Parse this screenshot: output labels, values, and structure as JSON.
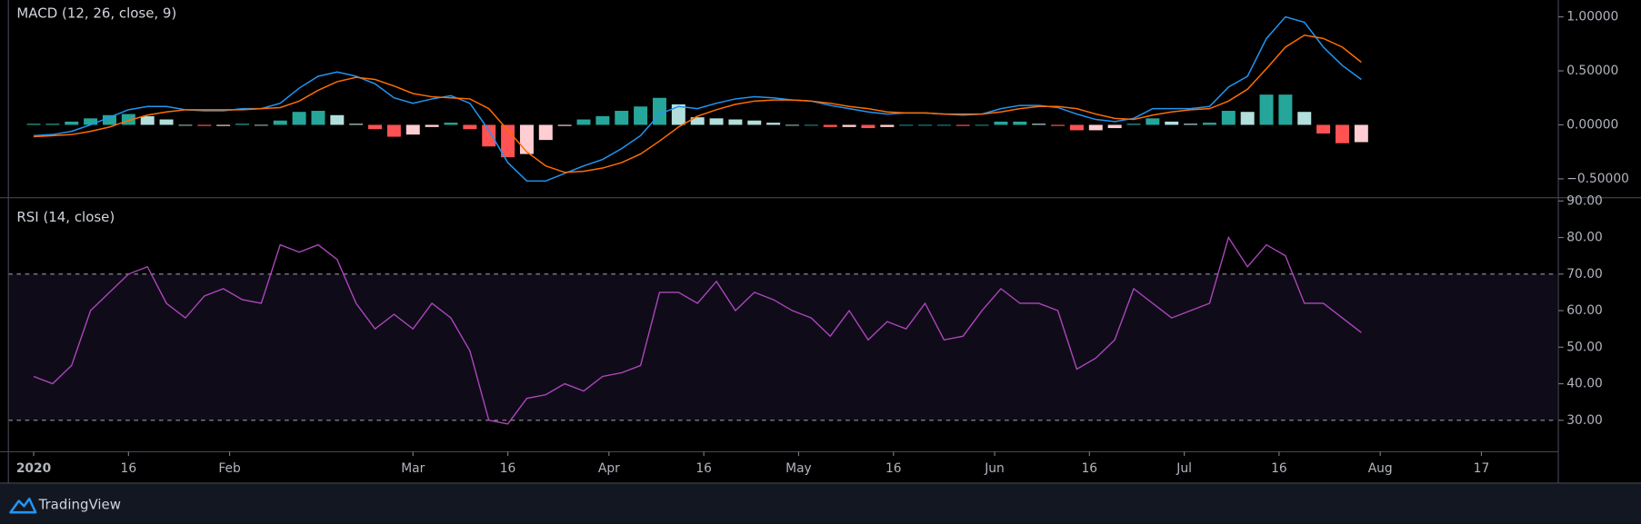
{
  "chart_data": [
    {
      "type": "macd",
      "title": "MACD (12, 26, close, 9)",
      "x": [
        "2020-01-01",
        "2020-01-04",
        "2020-01-07",
        "2020-01-10",
        "2020-01-13",
        "2020-01-16",
        "2020-01-19",
        "2020-01-22",
        "2020-01-25",
        "2020-01-28",
        "2020-01-31",
        "2020-02-03",
        "2020-02-06",
        "2020-02-09",
        "2020-02-12",
        "2020-02-15",
        "2020-02-18",
        "2020-02-21",
        "2020-02-24",
        "2020-02-27",
        "2020-03-01",
        "2020-03-04",
        "2020-03-07",
        "2020-03-10",
        "2020-03-13",
        "2020-03-16",
        "2020-03-19",
        "2020-03-22",
        "2020-03-25",
        "2020-03-28",
        "2020-03-31",
        "2020-04-03",
        "2020-04-06",
        "2020-04-09",
        "2020-04-12",
        "2020-04-15",
        "2020-04-18",
        "2020-04-21",
        "2020-04-24",
        "2020-04-27",
        "2020-04-30",
        "2020-05-03",
        "2020-05-06",
        "2020-05-09",
        "2020-05-12",
        "2020-05-15",
        "2020-05-18",
        "2020-05-21",
        "2020-05-24",
        "2020-05-27",
        "2020-05-30",
        "2020-06-02",
        "2020-06-05",
        "2020-06-08",
        "2020-06-11",
        "2020-06-14",
        "2020-06-17",
        "2020-06-20",
        "2020-06-23",
        "2020-06-26",
        "2020-06-29",
        "2020-07-02",
        "2020-07-05",
        "2020-07-08",
        "2020-07-11",
        "2020-07-14",
        "2020-07-17",
        "2020-07-20",
        "2020-07-23",
        "2020-07-26",
        "2020-07-29"
      ],
      "xlim": [
        "2019-12-28",
        "2020-08-29"
      ],
      "ylim": [
        -0.665,
        1.155
      ],
      "yticks": [
        {
          "value": 1,
          "label": "1.00000"
        },
        {
          "value": 0.5,
          "label": "0.50000"
        },
        {
          "value": 0,
          "label": "0.00000"
        },
        {
          "value": -0.5,
          "label": "−0.50000"
        }
      ],
      "series": [
        {
          "type": "line",
          "color": "#2196f3",
          "values": [
            -0.1,
            -0.09,
            -0.06,
            0.0,
            0.07,
            0.14,
            0.17,
            0.17,
            0.14,
            0.13,
            0.13,
            0.15,
            0.15,
            0.2,
            0.34,
            0.45,
            0.49,
            0.45,
            0.38,
            0.25,
            0.2,
            0.24,
            0.27,
            0.2,
            -0.05,
            -0.35,
            -0.52,
            -0.52,
            -0.45,
            -0.38,
            -0.32,
            -0.22,
            -0.1,
            0.1,
            0.17,
            0.15,
            0.2,
            0.24,
            0.26,
            0.25,
            0.23,
            0.22,
            0.18,
            0.15,
            0.12,
            0.1,
            0.11,
            0.11,
            0.1,
            0.09,
            0.1,
            0.15,
            0.18,
            0.18,
            0.16,
            0.1,
            0.05,
            0.03,
            0.06,
            0.15,
            0.15,
            0.15,
            0.17,
            0.35,
            0.45,
            0.8,
            1.0,
            0.95,
            0.72,
            0.55,
            0.42
          ]
        },
        {
          "type": "line",
          "color": "#ff6d00",
          "values": [
            -0.11,
            -0.1,
            -0.09,
            -0.06,
            -0.02,
            0.04,
            0.09,
            0.12,
            0.14,
            0.14,
            0.14,
            0.14,
            0.15,
            0.16,
            0.22,
            0.32,
            0.4,
            0.44,
            0.42,
            0.36,
            0.29,
            0.26,
            0.25,
            0.24,
            0.15,
            -0.05,
            -0.25,
            -0.38,
            -0.44,
            -0.43,
            -0.4,
            -0.35,
            -0.27,
            -0.15,
            -0.02,
            0.08,
            0.14,
            0.19,
            0.22,
            0.23,
            0.23,
            0.22,
            0.2,
            0.17,
            0.15,
            0.12,
            0.11,
            0.11,
            0.1,
            0.1,
            0.1,
            0.12,
            0.15,
            0.17,
            0.17,
            0.15,
            0.1,
            0.06,
            0.05,
            0.09,
            0.12,
            0.14,
            0.15,
            0.22,
            0.33,
            0.52,
            0.72,
            0.83,
            0.8,
            0.72,
            0.58
          ]
        },
        {
          "type": "histogram",
          "colors": [
            "#26a69a",
            "#b2dfdb",
            "#ff5252",
            "#ffcdd2"
          ],
          "values": [
            0.01,
            0.01,
            0.03,
            0.06,
            0.09,
            0.1,
            0.08,
            0.05,
            0,
            -0.01,
            -0.01,
            0.01,
            0,
            0.04,
            0.12,
            0.13,
            0.09,
            0.01,
            -0.04,
            -0.11,
            -0.09,
            -0.02,
            0.02,
            -0.04,
            -0.2,
            -0.3,
            -0.27,
            -0.14,
            -0.01,
            0.05,
            0.08,
            0.13,
            0.17,
            0.25,
            0.19,
            0.07,
            0.06,
            0.05,
            0.04,
            0.02,
            0,
            0,
            -0.02,
            -0.02,
            -0.03,
            -0.02,
            0,
            0,
            0,
            -0.01,
            0,
            0.03,
            0.03,
            0.01,
            -0.01,
            -0.05,
            -0.05,
            -0.03,
            0.01,
            0.06,
            0.03,
            0.01,
            0.02,
            0.13,
            0.12,
            0.28,
            0.28,
            0.12,
            -0.08,
            -0.17,
            -0.16
          ]
        }
      ]
    },
    {
      "type": "rsi",
      "title": "RSI (14, close)",
      "x": [
        "2020-01-01",
        "2020-01-04",
        "2020-01-07",
        "2020-01-10",
        "2020-01-13",
        "2020-01-16",
        "2020-01-19",
        "2020-01-22",
        "2020-01-25",
        "2020-01-28",
        "2020-01-31",
        "2020-02-03",
        "2020-02-06",
        "2020-02-09",
        "2020-02-12",
        "2020-02-15",
        "2020-02-18",
        "2020-02-21",
        "2020-02-24",
        "2020-02-27",
        "2020-03-01",
        "2020-03-04",
        "2020-03-07",
        "2020-03-10",
        "2020-03-13",
        "2020-03-16",
        "2020-03-19",
        "2020-03-22",
        "2020-03-25",
        "2020-03-28",
        "2020-03-31",
        "2020-04-03",
        "2020-04-06",
        "2020-04-09",
        "2020-04-12",
        "2020-04-15",
        "2020-04-18",
        "2020-04-21",
        "2020-04-24",
        "2020-04-27",
        "2020-04-30",
        "2020-05-03",
        "2020-05-06",
        "2020-05-09",
        "2020-05-12",
        "2020-05-15",
        "2020-05-18",
        "2020-05-21",
        "2020-05-24",
        "2020-05-27",
        "2020-05-30",
        "2020-06-02",
        "2020-06-05",
        "2020-06-08",
        "2020-06-11",
        "2020-06-14",
        "2020-06-17",
        "2020-06-20",
        "2020-06-23",
        "2020-06-26",
        "2020-06-29",
        "2020-07-02",
        "2020-07-05",
        "2020-07-08",
        "2020-07-11",
        "2020-07-14",
        "2020-07-17",
        "2020-07-20",
        "2020-07-23",
        "2020-07-26",
        "2020-07-29"
      ],
      "xlim": [
        "2019-12-28",
        "2020-08-29"
      ],
      "xticks": [
        {
          "value": "2020-01-01",
          "label": "2020"
        },
        {
          "value": "2020-01-16",
          "label": "16"
        },
        {
          "value": "2020-02-01",
          "label": "Feb"
        },
        {
          "value": "2020-03-01",
          "label": "Mar"
        },
        {
          "value": "2020-03-16",
          "label": "16"
        },
        {
          "value": "2020-04-01",
          "label": "Apr"
        },
        {
          "value": "2020-04-16",
          "label": "16"
        },
        {
          "value": "2020-05-01",
          "label": "May"
        },
        {
          "value": "2020-05-16",
          "label": "16"
        },
        {
          "value": "2020-06-01",
          "label": "Jun"
        },
        {
          "value": "2020-06-16",
          "label": "16"
        },
        {
          "value": "2020-07-01",
          "label": "Jul"
        },
        {
          "value": "2020-07-16",
          "label": "16"
        },
        {
          "value": "2020-08-01",
          "label": "Aug"
        },
        {
          "value": "2020-08-17",
          "label": "17"
        }
      ],
      "ylim": [
        21.4,
        90.6
      ],
      "yticks": [
        {
          "value": 90,
          "label": "90.00"
        },
        {
          "value": 80,
          "label": "80.00"
        },
        {
          "value": 70,
          "label": "70.00"
        },
        {
          "value": 60,
          "label": "60.00"
        },
        {
          "value": 50,
          "label": "50.00"
        },
        {
          "value": 40,
          "label": "40.00"
        },
        {
          "value": 30,
          "label": "30.00"
        }
      ],
      "band": [
        30,
        70
      ],
      "band_color": "#7e57c2",
      "color": "#ab47bc",
      "values": [
        42,
        40,
        45,
        60,
        65,
        70,
        72,
        62,
        58,
        64,
        66,
        63,
        62,
        78,
        76,
        78,
        74,
        62,
        55,
        59,
        55,
        62,
        58,
        49,
        30,
        29,
        36,
        37,
        40,
        38,
        42,
        43,
        45,
        65,
        65,
        62,
        68,
        60,
        65,
        63,
        60,
        58,
        53,
        60,
        52,
        57,
        55,
        62,
        52,
        53,
        60,
        66,
        62,
        62,
        60,
        44,
        47,
        52,
        66,
        62,
        58,
        60,
        62,
        80,
        72,
        78,
        75,
        62,
        62,
        58,
        54
      ]
    },
    {
      "brand": "TradingView"
    }
  ]
}
